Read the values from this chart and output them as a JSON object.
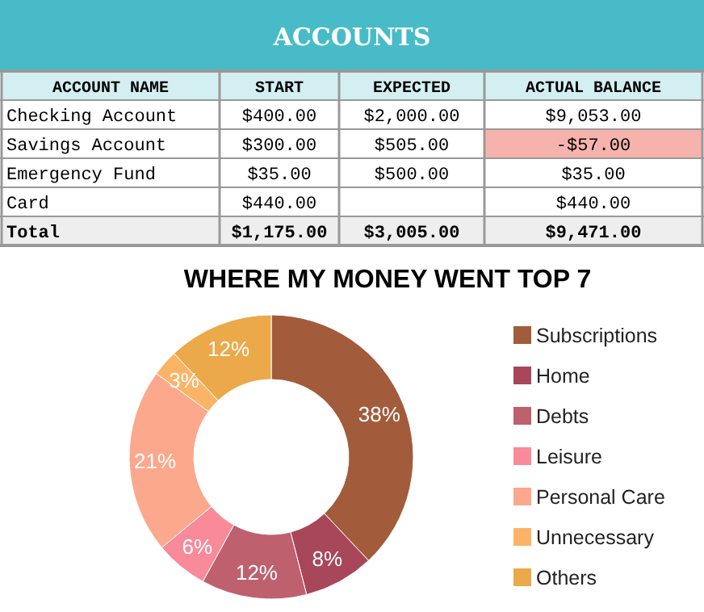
{
  "chart_data": [
    {
      "type": "other",
      "title": "ACCOUNTS",
      "categories": [
        "ACCOUNT NAME",
        "START",
        "EXPECTED",
        "ACTUAL BALANCE"
      ],
      "annotations": [
        "Checking Account",
        "$400.00",
        "$2,000.00",
        "$9,053.00",
        "Savings Account",
        "$300.00",
        "$505.00",
        "-$57.00",
        "Emergency Fund",
        "$35.00",
        "$500.00",
        "$35.00",
        "Card",
        "$440.00",
        null,
        "$440.00",
        "Total",
        "$1,175.00",
        "$3,005.00",
        "$9,471.00"
      ]
    },
    {
      "type": "donut",
      "title": "WHERE MY MONEY WENT TOP 7",
      "legend": "right",
      "value_labels": [
        "38%",
        "8%",
        "12%",
        "6%",
        "21%",
        "3%",
        "12%"
      ],
      "categories": [
        "Subscriptions",
        "Home",
        "Debts",
        "Leisure",
        "Personal Care",
        "Unnecessary",
        "Others"
      ],
      "values": [
        38,
        8,
        12,
        6,
        21,
        3,
        12
      ],
      "colors": [
        "#a25c3c",
        "#a8465a",
        "#bf606e",
        "#f88a9a",
        "#fca88c",
        "#fbb466",
        "#eba94a"
      ]
    }
  ]
}
